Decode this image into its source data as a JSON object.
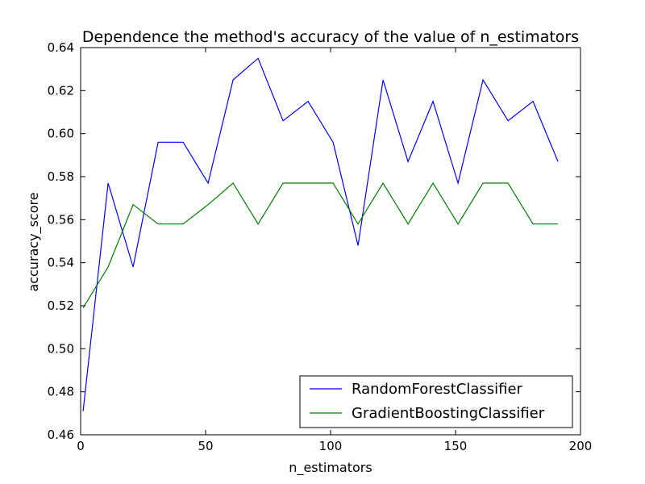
{
  "chart_data": {
    "type": "line",
    "title": "Dependence the method's accuracy of the value of n_estimators",
    "xlabel": "n_estimators",
    "ylabel": "accuracy_score",
    "xlim": [
      0,
      200
    ],
    "ylim": [
      0.46,
      0.64
    ],
    "xticks": [
      0,
      50,
      100,
      150,
      200
    ],
    "yticks": [
      0.46,
      0.48,
      0.5,
      0.52,
      0.54,
      0.56,
      0.58,
      0.6,
      0.62,
      0.64
    ],
    "grid": false,
    "legend_position": "lower-right",
    "x": [
      1,
      11,
      21,
      31,
      41,
      51,
      61,
      71,
      81,
      91,
      101,
      111,
      121,
      131,
      141,
      151,
      161,
      171,
      181,
      191
    ],
    "series": [
      {
        "name": "RandomForestClassifier",
        "color": "#0000ff",
        "values": [
          0.471,
          0.577,
          0.538,
          0.596,
          0.596,
          0.577,
          0.625,
          0.635,
          0.606,
          0.615,
          0.596,
          0.548,
          0.625,
          0.587,
          0.615,
          0.577,
          0.625,
          0.606,
          0.615,
          0.587
        ]
      },
      {
        "name": "GradientBoostingClassifier",
        "color": "#008000",
        "values": [
          0.519,
          0.538,
          0.567,
          0.558,
          0.558,
          0.567,
          0.577,
          0.558,
          0.577,
          0.577,
          0.577,
          0.558,
          0.577,
          0.558,
          0.577,
          0.558,
          0.577,
          0.577,
          0.558,
          0.558
        ]
      }
    ]
  }
}
